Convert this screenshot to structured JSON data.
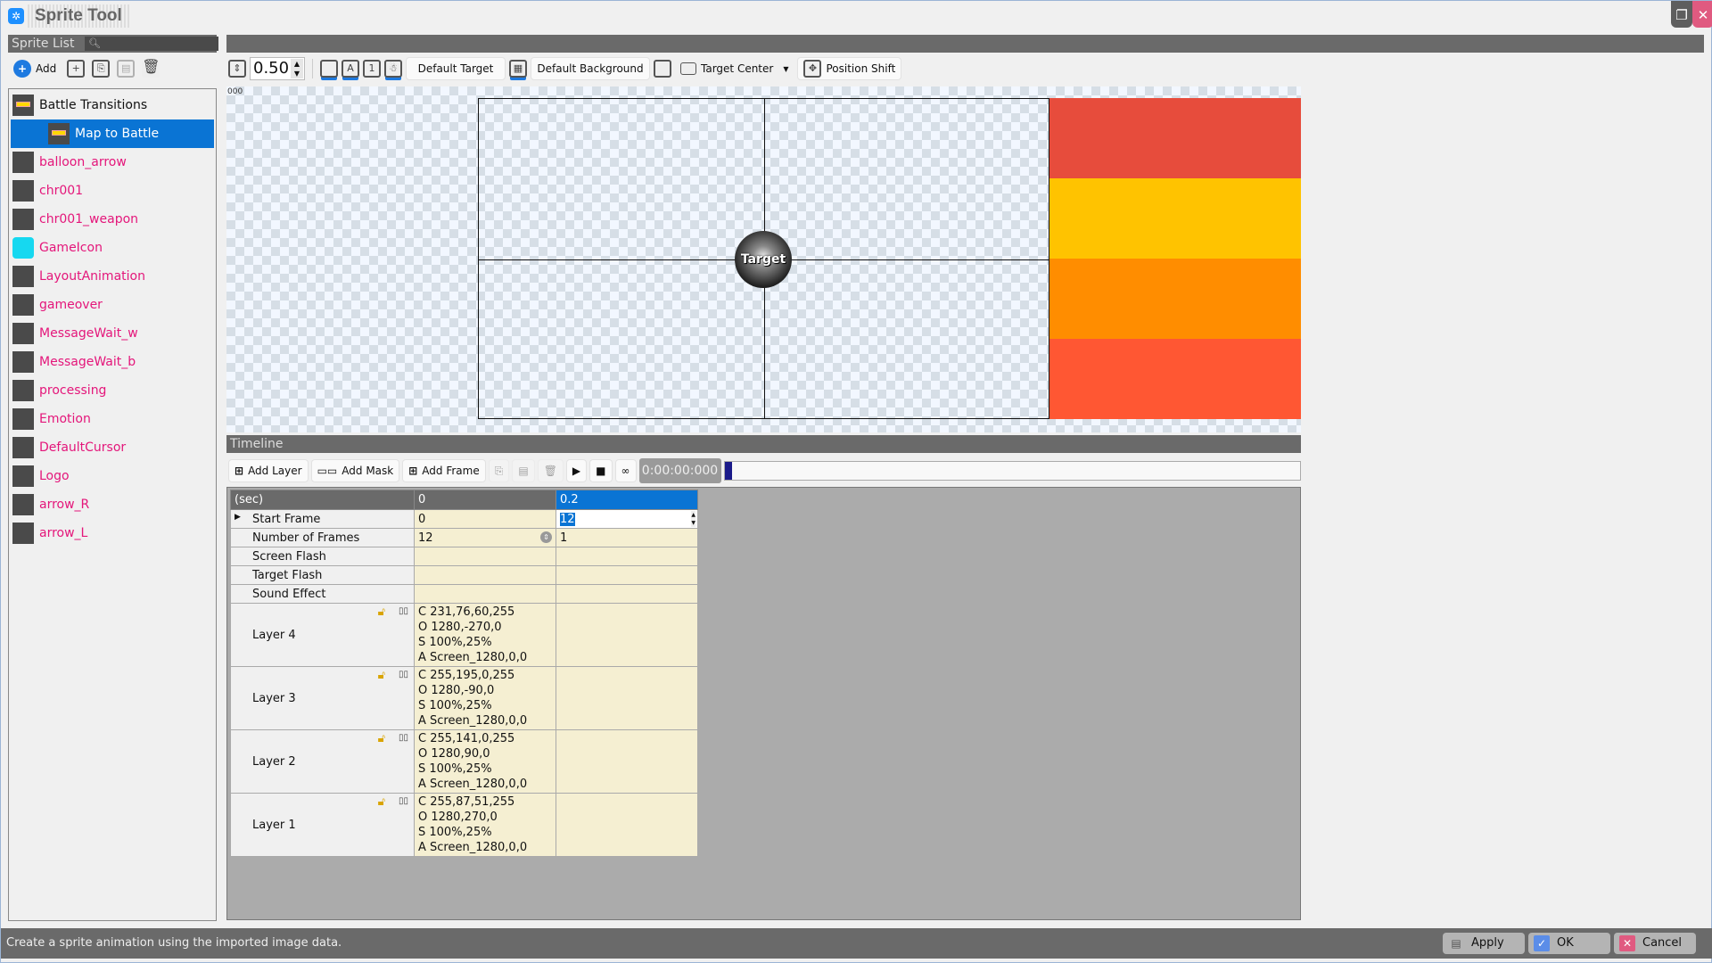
{
  "app": {
    "title": "Sprite Tool"
  },
  "sprite_list": {
    "title": "Sprite List",
    "search_placeholder": "",
    "add_label": "Add",
    "items": [
      {
        "label": "Battle Transitions",
        "type": "group"
      },
      {
        "label": "Map to Battle",
        "type": "child",
        "selected": true
      },
      {
        "label": "balloon_arrow"
      },
      {
        "label": "chr001"
      },
      {
        "label": "chr001_weapon"
      },
      {
        "label": "GameIcon"
      },
      {
        "label": "LayoutAnimation"
      },
      {
        "label": "gameover"
      },
      {
        "label": "MessageWait_w"
      },
      {
        "label": "MessageWait_b"
      },
      {
        "label": "processing"
      },
      {
        "label": "Emotion"
      },
      {
        "label": "DefaultCursor"
      },
      {
        "label": "Logo"
      },
      {
        "label": "arrow_R"
      },
      {
        "label": "arrow_L"
      }
    ]
  },
  "toolbar": {
    "zoom_value": "0.50",
    "default_target": "Default Target",
    "default_background": "Default Background",
    "target_center": "Target Center",
    "position_shift": "Position Shift"
  },
  "canvas": {
    "counter": "000",
    "target_label": "Target",
    "band_colors": [
      "#e74c3c",
      "#ffc300",
      "#ff8d00",
      "#ff5733"
    ]
  },
  "timeline": {
    "title": "Timeline",
    "add_layer": "Add Layer",
    "add_mask": "Add Mask",
    "add_frame": "Add Frame",
    "time": "0:00:00:000",
    "progress": 0,
    "header": {
      "label": "(sec)",
      "cols": [
        "0",
        "0.2"
      ]
    },
    "rows": [
      {
        "label": "Start Frame",
        "values": [
          "0",
          "12"
        ]
      },
      {
        "label": "Number of Frames",
        "values": [
          "12",
          "1"
        ]
      },
      {
        "label": "Screen Flash",
        "values": [
          "",
          ""
        ]
      },
      {
        "label": "Target Flash",
        "values": [
          "",
          ""
        ]
      },
      {
        "label": "Sound Effect",
        "values": [
          "",
          ""
        ]
      }
    ],
    "layers": [
      {
        "label": "Layer 4",
        "lines": [
          "C 231,76,60,255",
          "O 1280,-270,0",
          "S 100%,25%",
          "A Screen_1280,0,0"
        ]
      },
      {
        "label": "Layer 3",
        "lines": [
          "C 255,195,0,255",
          "O 1280,-90,0",
          "S 100%,25%",
          "A Screen_1280,0,0"
        ]
      },
      {
        "label": "Layer 2",
        "lines": [
          "C 255,141,0,255",
          "O 1280,90,0",
          "S 100%,25%",
          "A Screen_1280,0,0"
        ]
      },
      {
        "label": "Layer 1",
        "lines": [
          "C 255,87,51,255",
          "O 1280,270,0",
          "S 100%,25%",
          "A Screen_1280,0,0"
        ]
      }
    ]
  },
  "status": {
    "message": "Create a sprite animation using the imported image data.",
    "apply": "Apply",
    "ok": "OK",
    "cancel": "Cancel"
  }
}
